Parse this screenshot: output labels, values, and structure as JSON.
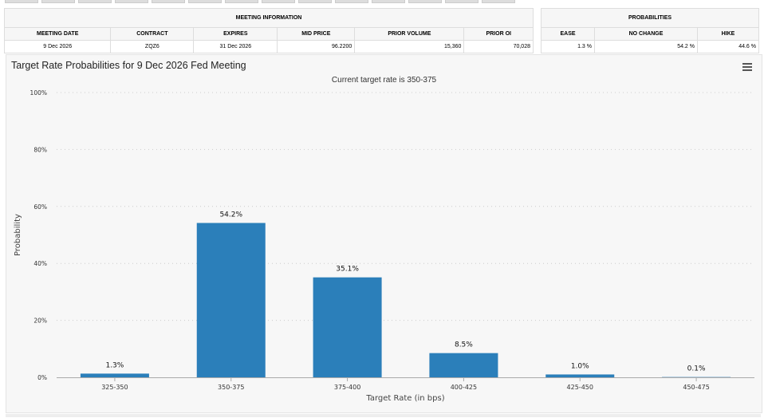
{
  "meeting_table": {
    "title": "MEETING INFORMATION",
    "headers": [
      "MEETING DATE",
      "CONTRACT",
      "EXPIRES",
      "MID PRICE",
      "PRIOR VOLUME",
      "PRIOR OI"
    ],
    "values": [
      "9 Dec 2026",
      "ZQZ6",
      "31 Dec 2026",
      "96.2200",
      "15,360",
      "70,028"
    ]
  },
  "prob_table": {
    "title": "PROBABILITIES",
    "headers": [
      "EASE",
      "NO CHANGE",
      "HIKE"
    ],
    "values": [
      "1.3 %",
      "54.2 %",
      "44.6 %"
    ]
  },
  "chart_data": {
    "type": "bar",
    "title": "Target Rate Probabilities for 9 Dec 2026 Fed Meeting",
    "subtitle": "Current target rate is 350-375",
    "xlabel": "Target Rate (in bps)",
    "ylabel": "Probability",
    "categories": [
      "325-350",
      "350-375",
      "375-400",
      "400-425",
      "425-450",
      "450-475"
    ],
    "values": [
      1.3,
      54.2,
      35.1,
      8.5,
      1.0,
      0.1
    ],
    "data_labels": [
      "1.3%",
      "54.2%",
      "35.1%",
      "8.5%",
      "1.0%",
      "0.1%"
    ],
    "ylim": [
      0,
      100
    ],
    "yticks": [
      "0%",
      "20%",
      "40%",
      "60%",
      "80%",
      "100%"
    ],
    "grid": true,
    "bar_color": "#2b7fba"
  }
}
